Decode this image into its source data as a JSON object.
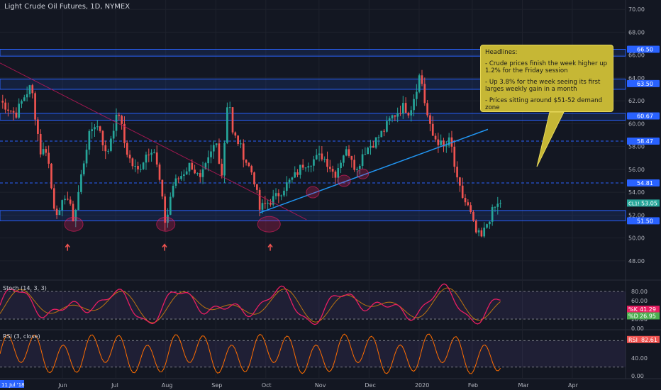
{
  "header": {
    "title": "Light Crude Oil Futures, 1D, NYMEX"
  },
  "panels": {
    "stoch_title": "Stoch (14, 3, 3)",
    "rsi_title": "RSI (3, close)"
  },
  "headlines": {
    "title": "Headlines:",
    "items": [
      "- Crude prices finish the week higher up 1.2% for the Friday session",
      "- Up 3.8% for the week seeing its first larges weekly gain in a month",
      "- Prices sitting around $51-52 demand zone"
    ]
  },
  "colors": {
    "background": "#131722",
    "up": "#26a69a",
    "down": "#ef5350",
    "zone": "#2962ff",
    "trend_up": "#2196f3",
    "trend_down": "#c2185b",
    "stoch_k": "#e91e63",
    "rsi": "#ff6d00",
    "note_bg": "#c6b735"
  },
  "chart_data": [
    {
      "type": "candlestick",
      "title": "Light Crude Oil Futures, 1D, NYMEX",
      "y_ticks": [
        48.0,
        50.0,
        52.0,
        54.0,
        56.0,
        58.0,
        60.0,
        62.0,
        64.0,
        66.0,
        68.0,
        70.0
      ],
      "ylim": [
        46.5,
        70.5
      ],
      "x_tick_labels": [
        "Jun",
        "Jul",
        "Aug",
        "Sep",
        "Oct",
        "Nov",
        "Dec",
        "2020",
        "Feb",
        "Mar",
        "Apr"
      ],
      "x_first_label": "11 Jul '18",
      "current_price": {
        "label": "CL1!",
        "value": "53.05"
      },
      "price_labels": [
        {
          "value": "66.50",
          "price": 66.5
        },
        {
          "value": "63.50",
          "price": 63.5
        },
        {
          "value": "60.67",
          "price": 60.67
        },
        {
          "value": "58.47",
          "price": 58.47
        },
        {
          "value": "54.81",
          "price": 54.81
        },
        {
          "value": "51.50",
          "price": 51.5
        }
      ],
      "zones": [
        {
          "from": 65.9,
          "to": 66.5
        },
        {
          "from": 63.0,
          "to": 63.9
        },
        {
          "from": 60.3,
          "to": 60.9
        },
        {
          "from": 51.5,
          "to": 52.4
        }
      ],
      "dashed_levels": [
        58.47,
        54.81
      ],
      "trendlines": [
        {
          "name": "rising",
          "from": {
            "t": 0.415,
            "p": 52.2
          },
          "to": {
            "t": 0.78,
            "p": 59.5
          }
        },
        {
          "name": "falling",
          "from": {
            "t": 0.0,
            "p": 65.3
          },
          "to": {
            "t": 0.49,
            "p": 51.6
          }
        }
      ],
      "path": [
        [
          0.0,
          62.0
        ],
        [
          0.01,
          61.5
        ],
        [
          0.025,
          60.8
        ],
        [
          0.04,
          62.5
        ],
        [
          0.05,
          63.3
        ],
        [
          0.058,
          60.0
        ],
        [
          0.065,
          57.5
        ],
        [
          0.075,
          57.8
        ],
        [
          0.085,
          53.0
        ],
        [
          0.095,
          52.0
        ],
        [
          0.105,
          54.0
        ],
        [
          0.118,
          51.5
        ],
        [
          0.13,
          55.5
        ],
        [
          0.14,
          58.5
        ],
        [
          0.15,
          60.0
        ],
        [
          0.16,
          59.5
        ],
        [
          0.17,
          57.0
        ],
        [
          0.18,
          59.5
        ],
        [
          0.19,
          61.0
        ],
        [
          0.2,
          58.0
        ],
        [
          0.21,
          56.5
        ],
        [
          0.22,
          55.8
        ],
        [
          0.235,
          57.5
        ],
        [
          0.245,
          58.0
        ],
        [
          0.255,
          55.0
        ],
        [
          0.265,
          51.0
        ],
        [
          0.275,
          54.5
        ],
        [
          0.29,
          55.5
        ],
        [
          0.305,
          56.5
        ],
        [
          0.32,
          55.0
        ],
        [
          0.335,
          57.0
        ],
        [
          0.345,
          58.5
        ],
        [
          0.355,
          55.5
        ],
        [
          0.365,
          63.0
        ],
        [
          0.372,
          59.0
        ],
        [
          0.38,
          58.5
        ],
        [
          0.395,
          56.5
        ],
        [
          0.405,
          55.5
        ],
        [
          0.415,
          52.5
        ],
        [
          0.425,
          53.0
        ],
        [
          0.44,
          53.5
        ],
        [
          0.455,
          54.5
        ],
        [
          0.47,
          55.3
        ],
        [
          0.485,
          56.5
        ],
        [
          0.5,
          56.8
        ],
        [
          0.515,
          57.2
        ],
        [
          0.525,
          56.5
        ],
        [
          0.535,
          55.5
        ],
        [
          0.55,
          57.5
        ],
        [
          0.56,
          57.5
        ],
        [
          0.57,
          55.8
        ],
        [
          0.58,
          57.5
        ],
        [
          0.6,
          58.5
        ],
        [
          0.615,
          59.5
        ],
        [
          0.625,
          60.5
        ],
        [
          0.635,
          61.0
        ],
        [
          0.645,
          61.5
        ],
        [
          0.655,
          61.0
        ],
        [
          0.665,
          63.0
        ],
        [
          0.672,
          64.5
        ],
        [
          0.68,
          61.5
        ],
        [
          0.69,
          59.0
        ],
        [
          0.7,
          58.5
        ],
        [
          0.71,
          57.8
        ],
        [
          0.72,
          58.6
        ],
        [
          0.73,
          55.0
        ],
        [
          0.74,
          53.5
        ],
        [
          0.75,
          52.5
        ],
        [
          0.76,
          50.5
        ],
        [
          0.77,
          50.0
        ],
        [
          0.78,
          51.5
        ],
        [
          0.79,
          52.6
        ],
        [
          0.8,
          53.05
        ]
      ]
    },
    {
      "type": "line",
      "title": "Stoch (14, 3, 3)",
      "y_ticks": [
        0.0,
        20.0,
        40.0,
        60.0,
        80.0
      ],
      "ylim": [
        0,
        100
      ],
      "series": [
        {
          "name": "%K",
          "last": 41.29
        },
        {
          "name": "%D",
          "last": 26.95
        }
      ]
    },
    {
      "type": "line",
      "title": "RSI (3, close)",
      "y_ticks": [
        0.0,
        40.0,
        80.0
      ],
      "ylim": [
        0,
        100
      ],
      "series": [
        {
          "name": "RSI",
          "last": 82.61
        }
      ]
    }
  ]
}
